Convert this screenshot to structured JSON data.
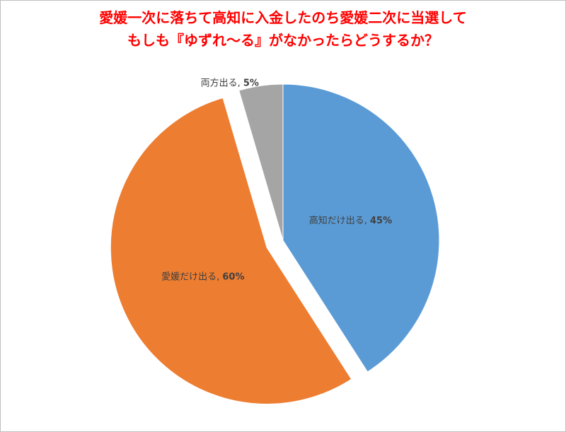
{
  "chart_data": {
    "type": "pie",
    "title": [
      "愛媛一次に落ちて高知に入金したのち愛媛二次に当選して",
      "もしも『ゆずれ～る』がなかったらどうするか？"
    ],
    "categories": [
      "高知だけ出る",
      "愛媛だけ出る",
      "両方出る"
    ],
    "values": [
      45,
      60,
      5
    ],
    "value_labels": [
      "45%",
      "60%",
      "5%"
    ],
    "label_separator": ", ",
    "colors": [
      "#5b9bd5",
      "#ed7d31",
      "#a5a5a5"
    ],
    "exploded": [
      false,
      true,
      false
    ]
  }
}
